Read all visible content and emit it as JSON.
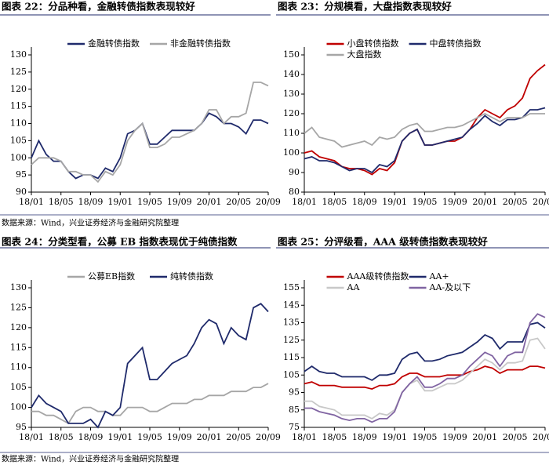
{
  "chart_data": [
    {
      "type": "line",
      "title": "图表 22：分品种看，金融转债指数表现较好",
      "x": [
        "18/01",
        "18/02",
        "18/03",
        "18/04",
        "18/05",
        "18/06",
        "18/07",
        "18/08",
        "18/09",
        "18/10",
        "18/11",
        "18/12",
        "19/01",
        "19/02",
        "19/03",
        "19/04",
        "19/05",
        "19/06",
        "19/07",
        "19/08",
        "19/09",
        "19/10",
        "19/11",
        "19/12",
        "20/01",
        "20/02",
        "20/03",
        "20/04",
        "20/05",
        "20/06",
        "20/07",
        "20/08",
        "20/09"
      ],
      "xticks": [
        "18/01",
        "18/05",
        "18/09",
        "19/01",
        "19/05",
        "19/09",
        "20/01",
        "20/05",
        "20/09"
      ],
      "ylim": [
        90,
        130
      ],
      "yticks": [
        90,
        95,
        100,
        105,
        110,
        115,
        120,
        125,
        130
      ],
      "legend": "top",
      "series": [
        {
          "name": "金融转债指数",
          "color": "#1f2a6b",
          "values": [
            100,
            105,
            101,
            99,
            99,
            96,
            94,
            95,
            95,
            94,
            97,
            96,
            100,
            107,
            108,
            110,
            104,
            104,
            106,
            108,
            108,
            108,
            108,
            110,
            113,
            112,
            110,
            110,
            109,
            107,
            111,
            111,
            110
          ]
        },
        {
          "name": "非金融转债指数",
          "color": "#a6a6a6",
          "values": [
            98,
            100,
            100,
            100,
            99,
            96,
            96,
            95,
            95,
            93,
            96,
            95,
            98,
            105,
            108,
            110,
            103,
            103,
            104,
            106,
            106,
            107,
            108,
            110,
            114,
            114,
            110,
            112,
            112,
            113,
            122,
            122,
            121
          ]
        }
      ]
    },
    {
      "type": "line",
      "title": "图表 23：分规模看，大盘指数表现较好",
      "x": [
        "18/01",
        "18/02",
        "18/03",
        "18/04",
        "18/05",
        "18/06",
        "18/07",
        "18/08",
        "18/09",
        "18/10",
        "18/11",
        "18/12",
        "19/01",
        "19/02",
        "19/03",
        "19/04",
        "19/05",
        "19/06",
        "19/07",
        "19/08",
        "19/09",
        "19/10",
        "19/11",
        "19/12",
        "20/01",
        "20/02",
        "20/03",
        "20/04",
        "20/05",
        "20/06",
        "20/07",
        "20/08",
        "20/09"
      ],
      "xticks": [
        "18/01",
        "18/05",
        "18/09",
        "19/01",
        "19/05",
        "19/09",
        "20/01",
        "20/05",
        "20/09"
      ],
      "ylim": [
        80,
        150
      ],
      "yticks": [
        80,
        90,
        100,
        110,
        120,
        130,
        140,
        150
      ],
      "legend": "top",
      "series": [
        {
          "name": "小盘转债指数",
          "color": "#c00000",
          "values": [
            100,
            101,
            98,
            97,
            96,
            93,
            92,
            92,
            91,
            89,
            92,
            91,
            95,
            106,
            110,
            112,
            104,
            104,
            105,
            106,
            106,
            108,
            112,
            118,
            122,
            120,
            118,
            122,
            124,
            128,
            138,
            142,
            145
          ]
        },
        {
          "name": "中盘转债指数",
          "color": "#1f2a6b",
          "values": [
            97,
            98,
            96,
            96,
            95,
            93,
            91,
            92,
            92,
            90,
            94,
            93,
            96,
            106,
            110,
            112,
            104,
            104,
            105,
            106,
            107,
            108,
            112,
            115,
            119,
            116,
            114,
            117,
            117,
            118,
            122,
            122,
            123
          ]
        },
        {
          "name": "大盘指数",
          "color": "#a6a6a6",
          "values": [
            110,
            113,
            108,
            107,
            106,
            103,
            104,
            105,
            106,
            104,
            108,
            107,
            108,
            112,
            114,
            115,
            111,
            111,
            112,
            113,
            113,
            114,
            116,
            118,
            120,
            118,
            116,
            118,
            118,
            118,
            120,
            120,
            120
          ]
        }
      ]
    },
    {
      "type": "line",
      "title": "图表 24：分类型看，公募 EB 指数表现优于纯债指数",
      "x": [
        "18/01",
        "18/02",
        "18/03",
        "18/04",
        "18/05",
        "18/06",
        "18/07",
        "18/08",
        "18/09",
        "18/10",
        "18/11",
        "18/12",
        "19/01",
        "19/02",
        "19/03",
        "19/04",
        "19/05",
        "19/06",
        "19/07",
        "19/08",
        "19/09",
        "19/10",
        "19/11",
        "19/12",
        "20/01",
        "20/02",
        "20/03",
        "20/04",
        "20/05",
        "20/06",
        "20/07",
        "20/08",
        "20/09"
      ],
      "xticks": [
        "18/01",
        "18/05",
        "18/09",
        "19/01",
        "19/05",
        "19/09",
        "20/01",
        "20/05",
        "20/09"
      ],
      "ylim": [
        95,
        130
      ],
      "yticks": [
        95,
        100,
        105,
        110,
        115,
        120,
        125,
        130
      ],
      "legend": "top",
      "series": [
        {
          "name": "公募EB指数",
          "color": "#a6a6a6",
          "values": [
            99,
            99,
            98,
            98,
            97,
            96,
            99,
            100,
            100,
            99,
            99,
            98,
            98,
            100,
            100,
            100,
            99,
            99,
            100,
            101,
            101,
            101,
            102,
            102,
            103,
            103,
            103,
            104,
            104,
            104,
            105,
            105,
            106
          ]
        },
        {
          "name": "纯转债指数",
          "color": "#1f2a6b",
          "values": [
            100,
            103,
            101,
            100,
            99,
            96,
            96,
            96,
            97,
            95,
            99,
            98,
            100,
            111,
            113,
            115,
            107,
            107,
            109,
            111,
            112,
            113,
            116,
            120,
            122,
            121,
            116,
            120,
            118,
            117,
            125,
            126,
            124
          ]
        }
      ]
    },
    {
      "type": "line",
      "title": "图表 25：分评级看，AAA 级转债指数表现较好",
      "x": [
        "18/01",
        "18/02",
        "18/03",
        "18/04",
        "18/05",
        "18/06",
        "18/07",
        "18/08",
        "18/09",
        "18/10",
        "18/11",
        "18/12",
        "19/01",
        "19/02",
        "19/03",
        "19/04",
        "19/05",
        "19/06",
        "19/07",
        "19/08",
        "19/09",
        "19/10",
        "19/11",
        "19/12",
        "20/01",
        "20/02",
        "20/03",
        "20/04",
        "20/05",
        "20/06",
        "20/07",
        "20/08",
        "20/09"
      ],
      "xticks": [
        "18/01",
        "18/05",
        "18/09",
        "19/01",
        "19/05",
        "19/09",
        "20/01",
        "20/05",
        "20/09"
      ],
      "ylim": [
        75,
        155
      ],
      "yticks": [
        75,
        85,
        95,
        105,
        115,
        125,
        135,
        145,
        155
      ],
      "legend": "top",
      "series": [
        {
          "name": "AAA级转债指数",
          "color": "#c00000",
          "values": [
            100,
            101,
            99,
            99,
            99,
            98,
            98,
            98,
            98,
            97,
            99,
            99,
            100,
            104,
            106,
            106,
            104,
            104,
            104,
            105,
            105,
            105,
            107,
            108,
            110,
            109,
            106,
            108,
            108,
            108,
            110,
            110,
            109
          ]
        },
        {
          "name": "AA+",
          "color": "#1f2a6b",
          "values": [
            107,
            110,
            107,
            106,
            106,
            104,
            104,
            104,
            104,
            102,
            105,
            105,
            106,
            114,
            117,
            118,
            113,
            113,
            114,
            116,
            117,
            118,
            121,
            124,
            128,
            126,
            120,
            124,
            124,
            124,
            134,
            135,
            132
          ]
        },
        {
          "name": "AA",
          "color": "#c8c8c8",
          "values": [
            90,
            90,
            87,
            86,
            85,
            82,
            82,
            82,
            82,
            80,
            83,
            82,
            85,
            95,
            100,
            102,
            96,
            96,
            98,
            100,
            100,
            102,
            106,
            110,
            114,
            112,
            108,
            112,
            112,
            113,
            125,
            126,
            120
          ]
        },
        {
          "name": "AA-及以下",
          "color": "#8064a2",
          "values": [
            86,
            86,
            84,
            83,
            82,
            80,
            79,
            80,
            80,
            78,
            80,
            80,
            84,
            95,
            100,
            104,
            98,
            98,
            100,
            103,
            103,
            105,
            110,
            114,
            118,
            116,
            110,
            116,
            118,
            118,
            135,
            140,
            138
          ]
        }
      ]
    }
  ],
  "sources": [
    "数据来源：Wind，兴业证券经济与金融研究院整理",
    "数据来源：Wind，兴业证券经济与金融研究院整理"
  ]
}
